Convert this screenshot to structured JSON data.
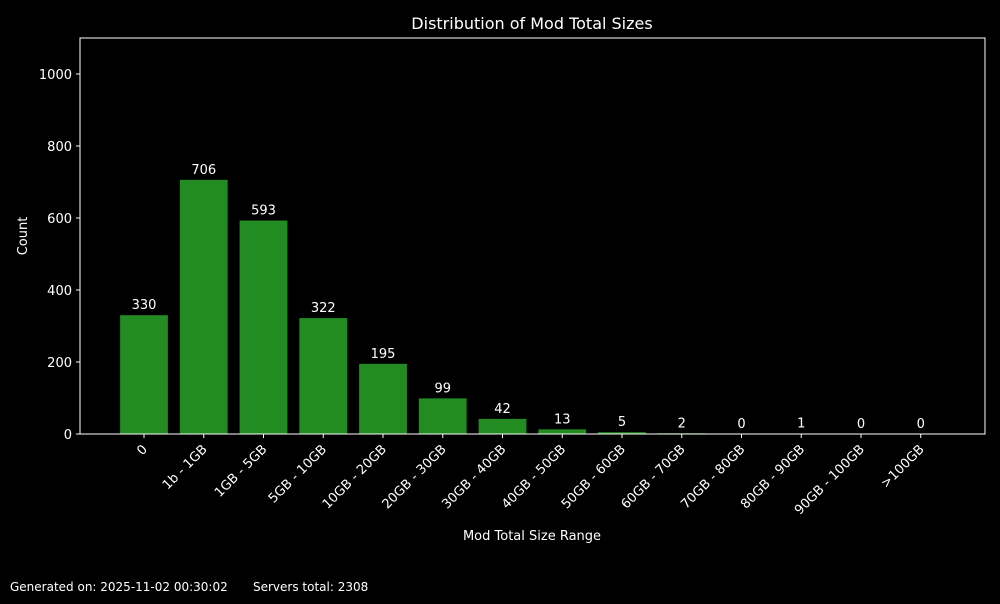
{
  "chart_data": {
    "type": "bar",
    "title": "Distribution of Mod Total Sizes",
    "xlabel": "Mod Total Size Range",
    "ylabel": "Count",
    "categories": [
      "0",
      "1b - 1GB",
      "1GB - 5GB",
      "5GB - 10GB",
      "10GB - 20GB",
      "20GB - 30GB",
      "30GB - 40GB",
      "40GB - 50GB",
      "50GB - 60GB",
      "60GB - 70GB",
      "70GB - 80GB",
      "80GB - 90GB",
      "90GB - 100GB",
      ">100GB"
    ],
    "values": [
      330,
      706,
      593,
      322,
      195,
      99,
      42,
      13,
      5,
      2,
      0,
      1,
      0,
      0
    ],
    "ylim": [
      0,
      1100
    ],
    "yticks": [
      0,
      200,
      400,
      600,
      800,
      1000
    ],
    "grid": false,
    "bar_color": "#228b22",
    "background": "#000000",
    "data_labels": true
  },
  "footer": {
    "generated": "Generated on: 2025-11-02 00:30:02",
    "servers_total": "Servers total: 2308"
  }
}
